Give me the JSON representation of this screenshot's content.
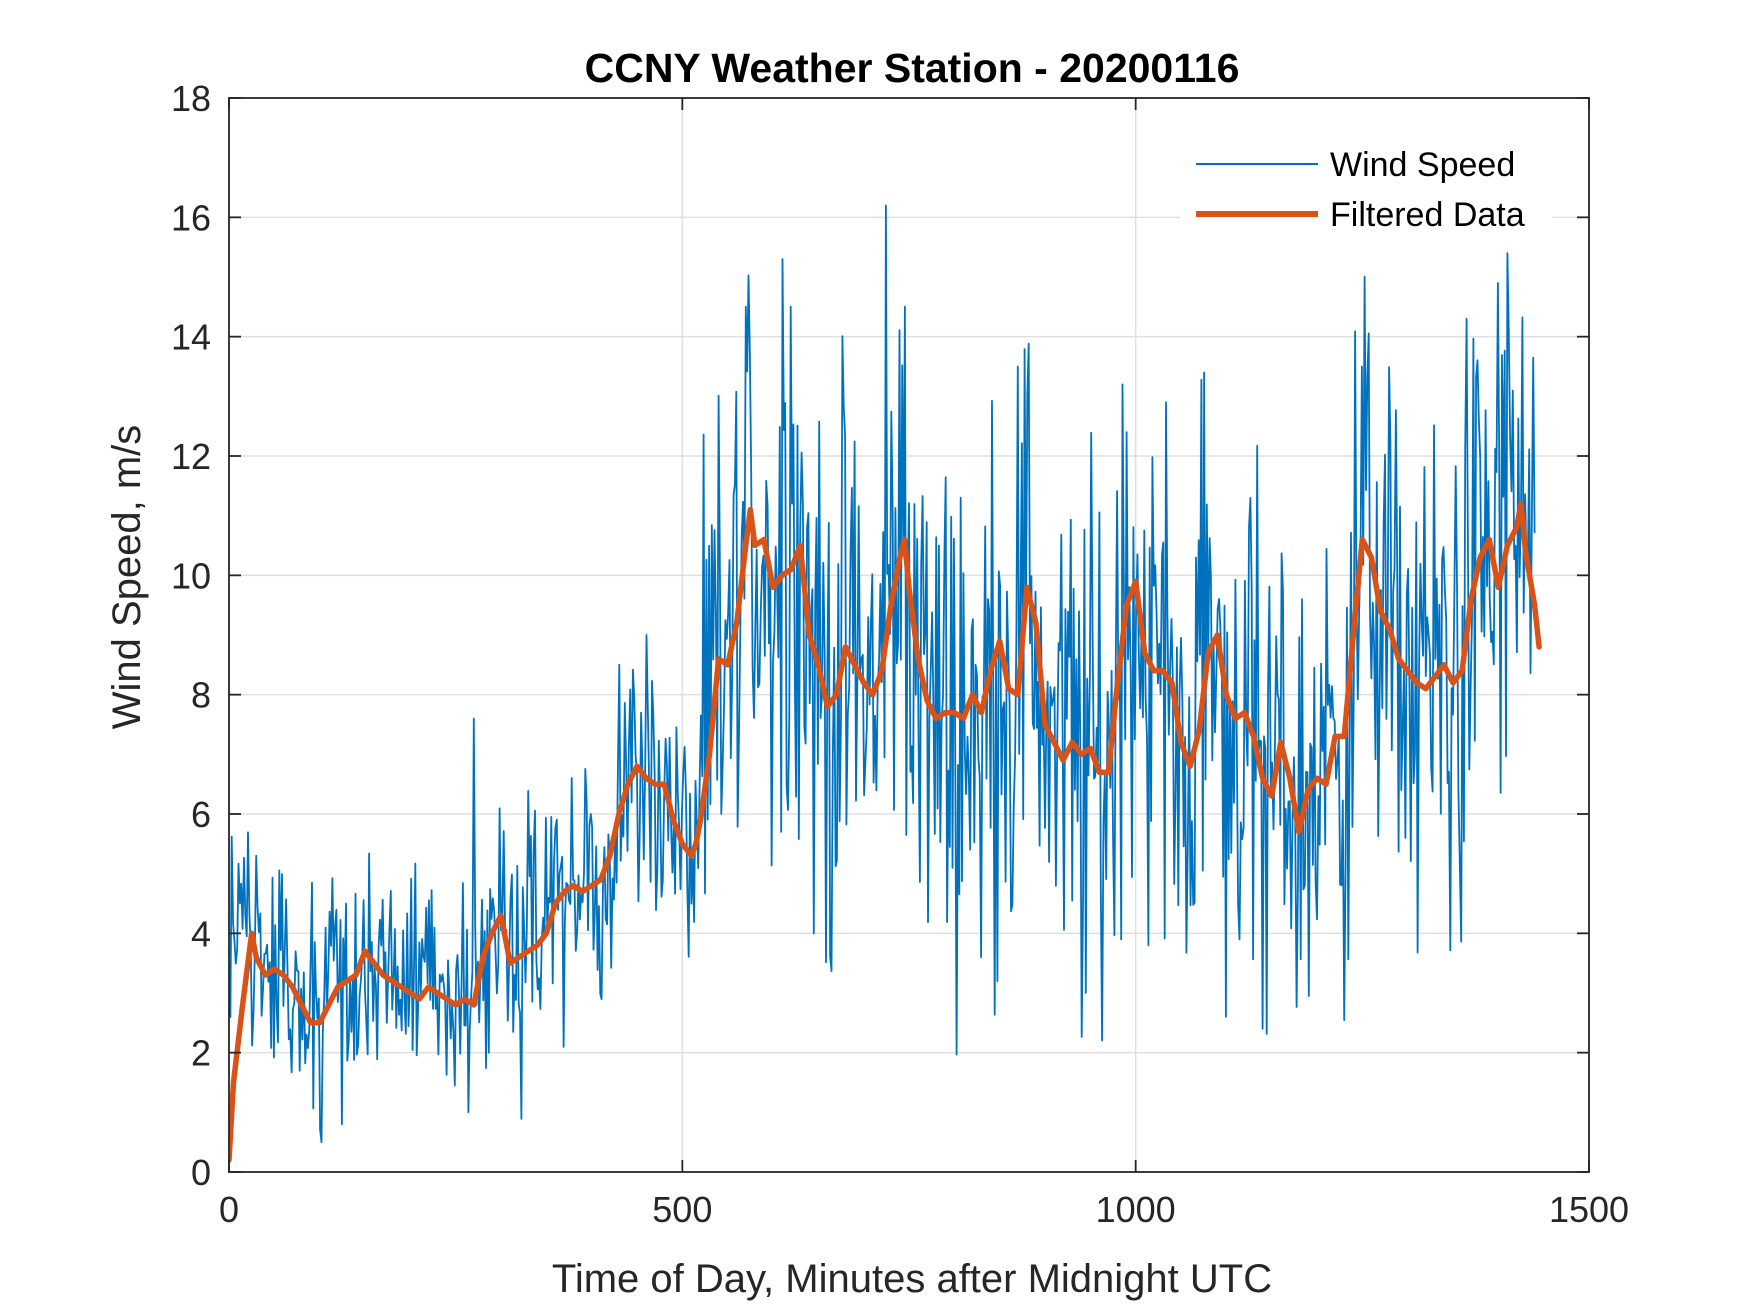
{
  "chart_data": {
    "type": "line",
    "title": "CCNY Weather Station - 20200116",
    "xlabel": "Time of Day, Minutes after Midnight UTC",
    "ylabel": "Wind Speed, m/s",
    "xlim": [
      0,
      1500
    ],
    "ylim": [
      0,
      18
    ],
    "xticks": [
      0,
      500,
      1000,
      1500
    ],
    "yticks": [
      0,
      2,
      4,
      6,
      8,
      10,
      12,
      14,
      16,
      18
    ],
    "grid": true,
    "legend_position": "top-right",
    "raw_extent_minutes": [
      0,
      1440
    ],
    "raw_noise": {
      "segments": [
        {
          "until": 300,
          "amplitude": 0.9,
          "spikes": [
            [
              30,
              5.3
            ],
            [
              270,
              7.6
            ],
            [
              125,
              0.8
            ]
          ]
        },
        {
          "until": 520,
          "amplitude": 1.1,
          "spikes": [
            [
              430,
              8.5
            ],
            [
              460,
              9.0
            ]
          ]
        },
        {
          "until": 1440,
          "amplitude": 2.2,
          "spikes": [
            [
              570,
              14.5
            ],
            [
              610,
              15.3
            ],
            [
              620,
              14.5
            ],
            [
              725,
              16.2
            ],
            [
              745,
              14.5
            ],
            [
              870,
              13.5
            ],
            [
              985,
              13.2
            ],
            [
              1075,
              13.4
            ],
            [
              1250,
              13.5
            ],
            [
              1365,
              14.3
            ],
            [
              1400,
              14.9
            ],
            [
              1410,
              15.4
            ],
            [
              1140,
              2.4
            ],
            [
              1100,
              2.6
            ],
            [
              830,
              3.6
            ],
            [
              945,
              3.0
            ]
          ]
        }
      ]
    },
    "series": [
      {
        "name": "Wind Speed",
        "color": "#0072BD",
        "sampling_minutes": 1.5,
        "baseline": "Filtered Data"
      },
      {
        "name": "Filtered Data",
        "color": "#D95319",
        "x": [
          0,
          5,
          15,
          25,
          30,
          40,
          50,
          60,
          70,
          80,
          90,
          100,
          110,
          120,
          130,
          140,
          150,
          160,
          170,
          180,
          190,
          200,
          210,
          220,
          230,
          240,
          250,
          260,
          270,
          280,
          290,
          300,
          310,
          320,
          330,
          340,
          350,
          360,
          370,
          380,
          390,
          400,
          410,
          420,
          430,
          440,
          450,
          460,
          470,
          480,
          490,
          500,
          510,
          515,
          520,
          530,
          540,
          550,
          560,
          570,
          575,
          580,
          590,
          600,
          610,
          620,
          630,
          640,
          650,
          660,
          670,
          680,
          690,
          700,
          710,
          720,
          730,
          740,
          745,
          750,
          760,
          770,
          780,
          790,
          800,
          810,
          820,
          830,
          840,
          850,
          860,
          870,
          880,
          890,
          900,
          910,
          920,
          930,
          940,
          950,
          960,
          970,
          980,
          990,
          1000,
          1010,
          1020,
          1030,
          1040,
          1050,
          1060,
          1070,
          1080,
          1090,
          1100,
          1110,
          1120,
          1130,
          1140,
          1150,
          1160,
          1170,
          1180,
          1190,
          1200,
          1210,
          1220,
          1230,
          1240,
          1250,
          1260,
          1270,
          1280,
          1290,
          1300,
          1310,
          1320,
          1330,
          1340,
          1350,
          1360,
          1370,
          1380,
          1390,
          1400,
          1410,
          1420,
          1425,
          1430,
          1440,
          1445
        ],
        "values": [
          0.2,
          1.5,
          2.8,
          4.0,
          3.6,
          3.3,
          3.4,
          3.3,
          3.1,
          2.8,
          2.5,
          2.5,
          2.8,
          3.1,
          3.2,
          3.3,
          3.7,
          3.5,
          3.3,
          3.2,
          3.1,
          3.0,
          2.9,
          3.1,
          3.0,
          2.9,
          2.8,
          2.9,
          2.8,
          3.6,
          4.0,
          4.3,
          3.5,
          3.6,
          3.7,
          3.8,
          4.0,
          4.5,
          4.7,
          4.8,
          4.7,
          4.8,
          4.9,
          5.3,
          6.0,
          6.5,
          6.8,
          6.6,
          6.5,
          6.5,
          5.9,
          5.5,
          5.3,
          5.5,
          5.9,
          7.0,
          8.6,
          8.5,
          9.2,
          10.5,
          11.1,
          10.5,
          10.6,
          9.8,
          10.0,
          10.1,
          10.5,
          9.0,
          8.5,
          7.8,
          8.0,
          8.8,
          8.5,
          8.2,
          8.0,
          8.4,
          9.5,
          10.3,
          10.6,
          9.8,
          8.6,
          7.9,
          7.6,
          7.7,
          7.7,
          7.6,
          8.0,
          7.7,
          8.4,
          8.9,
          8.1,
          8.0,
          9.8,
          9.2,
          7.5,
          7.2,
          6.9,
          7.2,
          7.0,
          7.1,
          6.7,
          6.7,
          8.2,
          9.5,
          9.9,
          8.7,
          8.4,
          8.4,
          8.2,
          7.2,
          6.8,
          7.4,
          8.7,
          9.0,
          8.0,
          7.6,
          7.7,
          7.3,
          6.6,
          6.3,
          7.2,
          6.6,
          5.7,
          6.4,
          6.6,
          6.5,
          7.3,
          7.3,
          9.0,
          10.6,
          10.3,
          9.4,
          9.1,
          8.6,
          8.4,
          8.2,
          8.1,
          8.3,
          8.5,
          8.2,
          8.4,
          9.6,
          10.3,
          10.6,
          9.8,
          10.5,
          10.8,
          11.2,
          10.4,
          9.5,
          8.8
        ]
      }
    ]
  }
}
